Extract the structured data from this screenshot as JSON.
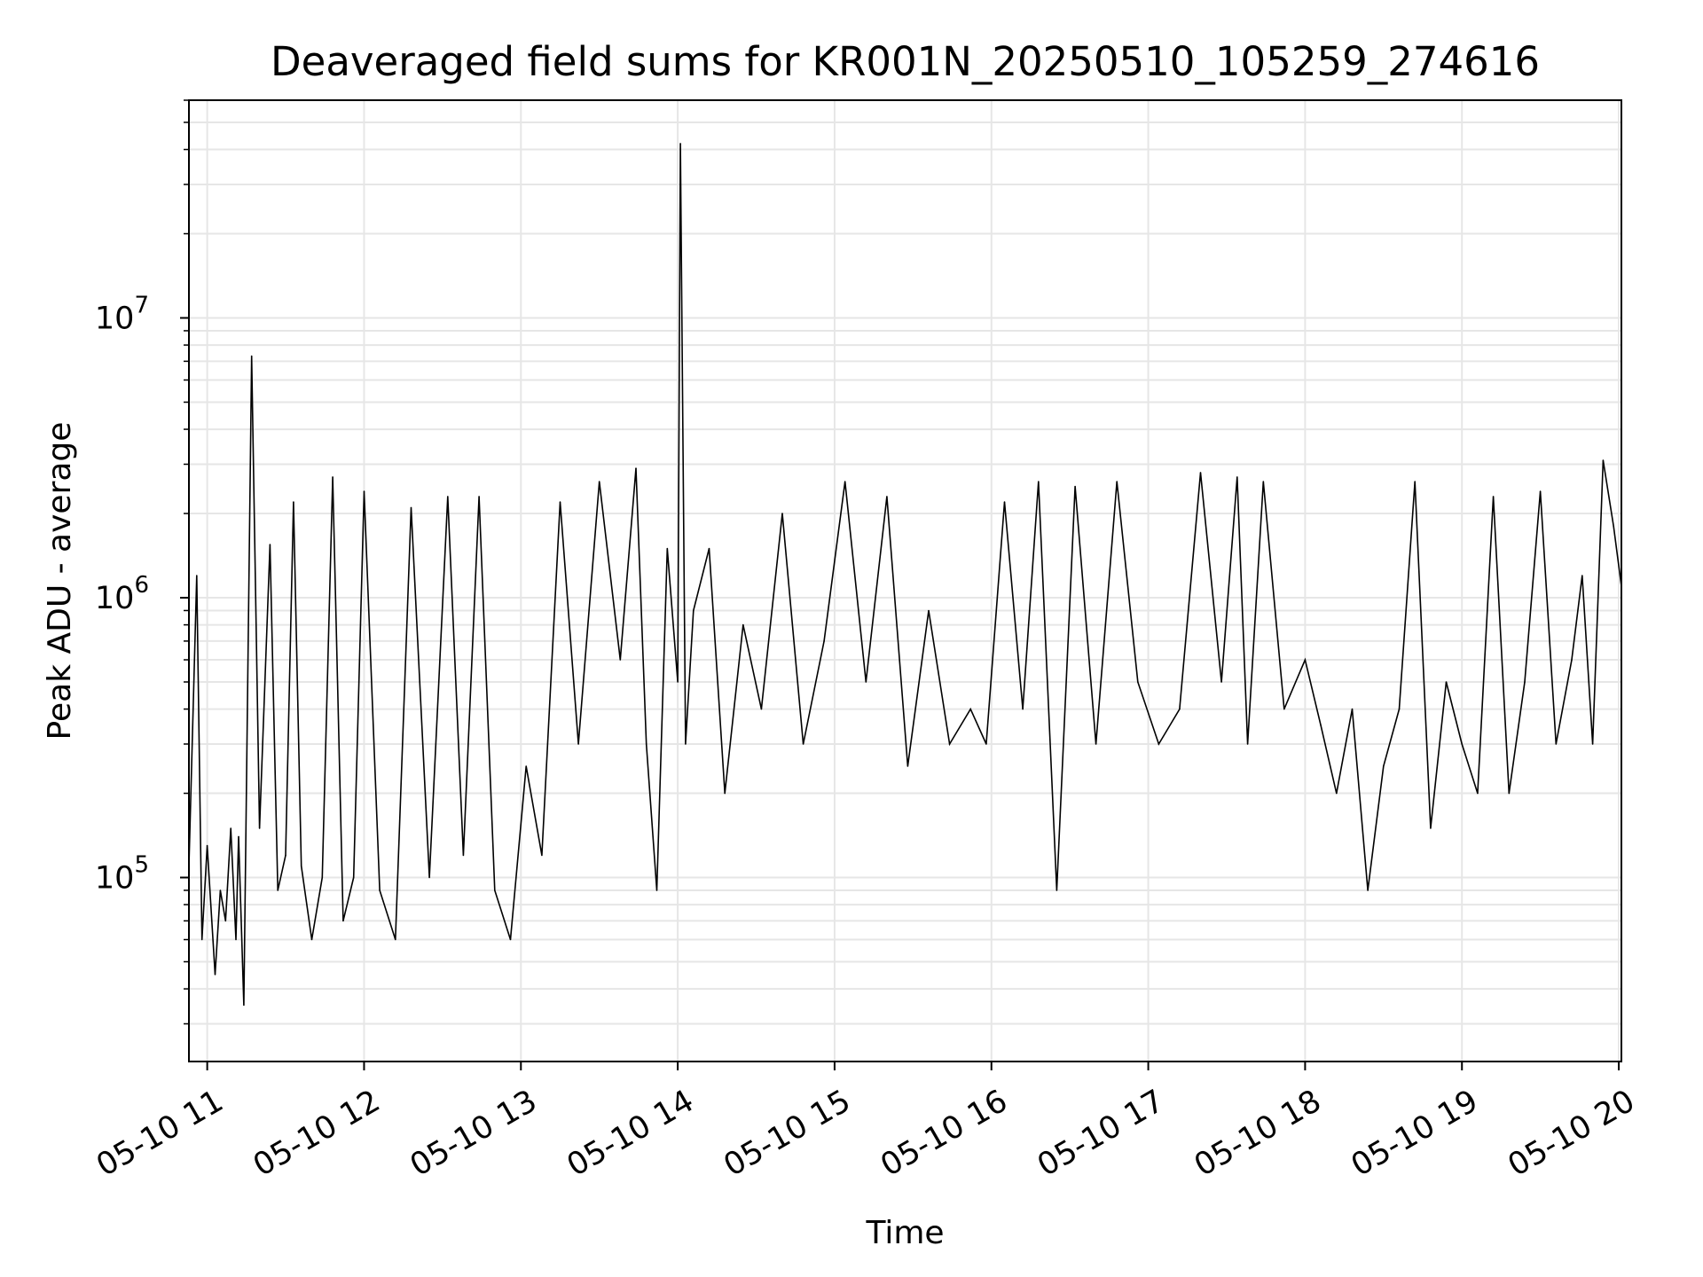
{
  "chart_data": {
    "type": "line",
    "title": "Deaveraged field sums for KR001N_20250510_105259_274616",
    "xlabel": "Time",
    "ylabel": "Peak ADU - average",
    "x_axis": {
      "kind": "datetime",
      "range": [
        "2025-05-10 10:53",
        "2025-05-10 20:01"
      ],
      "tick_labels": [
        "05-10 11",
        "05-10 12",
        "05-10 13",
        "05-10 14",
        "05-10 15",
        "05-10 16",
        "05-10 17",
        "05-10 18",
        "05-10 19",
        "05-10 20"
      ],
      "tick_label_rotation": "30°"
    },
    "y_axis": {
      "scale": "log",
      "range": [
        22000,
        60000000
      ],
      "major_ticks": [
        {
          "value": 100000,
          "base": "10",
          "exp": "5"
        },
        {
          "value": 1000000,
          "base": "10",
          "exp": "6"
        },
        {
          "value": 10000000,
          "base": "10",
          "exp": "7"
        }
      ]
    },
    "grid": true,
    "grid_minor": true,
    "line_color": "#000000",
    "grid_color": "#e6e6e6",
    "series": [
      {
        "x": [
          "2025-05-10 10:53",
          "2025-05-10 10:56",
          "2025-05-10 10:58",
          "2025-05-10 11:00",
          "2025-05-10 11:03",
          "2025-05-10 11:05",
          "2025-05-10 11:07",
          "2025-05-10 11:09",
          "2025-05-10 11:11",
          "2025-05-10 11:12",
          "2025-05-10 11:14",
          "2025-05-10 11:17",
          "2025-05-10 11:20",
          "2025-05-10 11:24",
          "2025-05-10 11:27",
          "2025-05-10 11:30",
          "2025-05-10 11:33",
          "2025-05-10 11:36",
          "2025-05-10 11:40",
          "2025-05-10 11:44",
          "2025-05-10 11:48",
          "2025-05-10 11:52",
          "2025-05-10 11:56",
          "2025-05-10 12:00",
          "2025-05-10 12:06",
          "2025-05-10 12:12",
          "2025-05-10 12:18",
          "2025-05-10 12:25",
          "2025-05-10 12:32",
          "2025-05-10 12:38",
          "2025-05-10 12:44",
          "2025-05-10 12:50",
          "2025-05-10 12:56",
          "2025-05-10 13:02",
          "2025-05-10 13:08",
          "2025-05-10 13:15",
          "2025-05-10 13:22",
          "2025-05-10 13:30",
          "2025-05-10 13:38",
          "2025-05-10 13:44",
          "2025-05-10 13:48",
          "2025-05-10 13:52",
          "2025-05-10 13:56",
          "2025-05-10 14:00",
          "2025-05-10 14:01",
          "2025-05-10 14:03",
          "2025-05-10 14:06",
          "2025-05-10 14:12",
          "2025-05-10 14:18",
          "2025-05-10 14:25",
          "2025-05-10 14:32",
          "2025-05-10 14:40",
          "2025-05-10 14:48",
          "2025-05-10 14:56",
          "2025-05-10 15:04",
          "2025-05-10 15:12",
          "2025-05-10 15:20",
          "2025-05-10 15:28",
          "2025-05-10 15:36",
          "2025-05-10 15:44",
          "2025-05-10 15:52",
          "2025-05-10 15:58",
          "2025-05-10 16:05",
          "2025-05-10 16:12",
          "2025-05-10 16:18",
          "2025-05-10 16:25",
          "2025-05-10 16:32",
          "2025-05-10 16:40",
          "2025-05-10 16:48",
          "2025-05-10 16:56",
          "2025-05-10 17:04",
          "2025-05-10 17:12",
          "2025-05-10 17:20",
          "2025-05-10 17:28",
          "2025-05-10 17:34",
          "2025-05-10 17:38",
          "2025-05-10 17:44",
          "2025-05-10 17:52",
          "2025-05-10 18:00",
          "2025-05-10 18:06",
          "2025-05-10 18:12",
          "2025-05-10 18:18",
          "2025-05-10 18:24",
          "2025-05-10 18:30",
          "2025-05-10 18:36",
          "2025-05-10 18:42",
          "2025-05-10 18:48",
          "2025-05-10 18:54",
          "2025-05-10 19:00",
          "2025-05-10 19:06",
          "2025-05-10 19:12",
          "2025-05-10 19:18",
          "2025-05-10 19:24",
          "2025-05-10 19:30",
          "2025-05-10 19:36",
          "2025-05-10 19:42",
          "2025-05-10 19:46",
          "2025-05-10 19:50",
          "2025-05-10 19:54",
          "2025-05-10 19:58",
          "2025-05-10 20:01"
        ],
        "y": [
          110000,
          1200000,
          60000,
          130000,
          45000,
          90000,
          70000,
          150000,
          60000,
          140000,
          35000,
          7300000,
          150000,
          1550000,
          90000,
          120000,
          2200000,
          110000,
          60000,
          100000,
          2700000,
          70000,
          100000,
          2400000,
          90000,
          60000,
          2100000,
          100000,
          2300000,
          120000,
          2300000,
          90000,
          60000,
          250000,
          120000,
          2200000,
          300000,
          2600000,
          600000,
          2900000,
          300000,
          90000,
          1500000,
          500000,
          42000000,
          300000,
          900000,
          1500000,
          200000,
          800000,
          400000,
          2000000,
          300000,
          700000,
          2600000,
          500000,
          2300000,
          250000,
          900000,
          300000,
          400000,
          300000,
          2200000,
          400000,
          2600000,
          90000,
          2500000,
          300000,
          2600000,
          500000,
          300000,
          400000,
          2800000,
          500000,
          2700000,
          300000,
          2600000,
          400000,
          600000,
          350000,
          200000,
          400000,
          90000,
          250000,
          400000,
          2600000,
          150000,
          500000,
          300000,
          200000,
          2300000,
          200000,
          500000,
          2400000,
          300000,
          600000,
          1200000,
          300000,
          3100000,
          1800000,
          1100000
        ]
      }
    ]
  }
}
